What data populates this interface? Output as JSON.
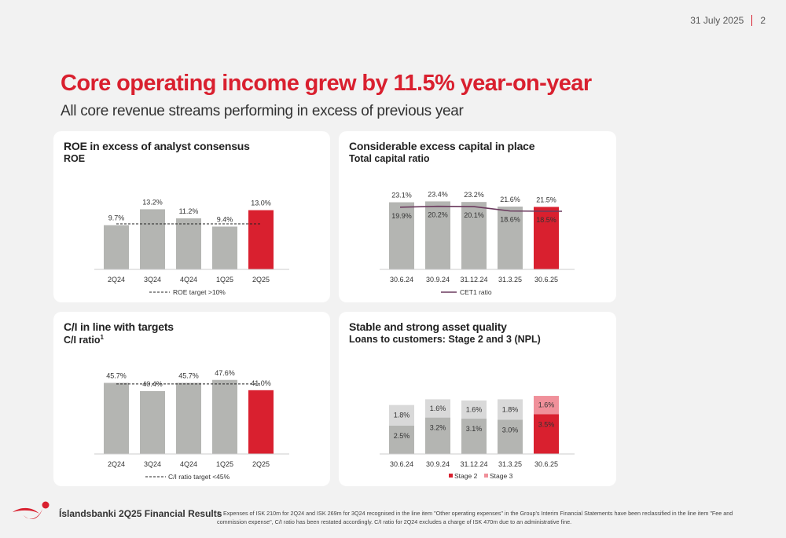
{
  "header": {
    "date": "31 July 2025",
    "page_number": "2",
    "title": "Core operating income grew by 11.5% year-on-year",
    "subtitle": "All core revenue streams performing in excess of previous year"
  },
  "colors": {
    "bar_gray": "#b4b5b2",
    "highlight_red": "#d9202f",
    "stage3_pink": "#f0909a",
    "stage3_light": "#d9d9d9",
    "cet1_line": "#6b3a5e",
    "dash": "#222222"
  },
  "panels": {
    "roe": {
      "title": "ROE in excess of analyst consensus",
      "subtitle": "ROE",
      "legend": "ROE target >10%"
    },
    "capital": {
      "title": "Considerable excess capital in place",
      "subtitle": "Total capital ratio",
      "legend": "CET1 ratio"
    },
    "ci": {
      "title": "C/I in line with targets",
      "subtitle": "C/I ratio",
      "footnote_mark": "1",
      "legend": "C/I ratio target <45%"
    },
    "npl": {
      "title": "Stable and strong asset quality",
      "subtitle": "Loans to customers: Stage 2 and 3 (NPL)",
      "legend": [
        "Stage 2",
        "Stage 3"
      ]
    }
  },
  "chart_data": [
    {
      "type": "bar",
      "categories": [
        "2Q24",
        "3Q24",
        "4Q24",
        "1Q25",
        "2Q25"
      ],
      "values": [
        9.7,
        13.2,
        11.2,
        9.4,
        13.0
      ],
      "labels": [
        "9.7%",
        "13.2%",
        "11.2%",
        "9.4%",
        "13.0%"
      ],
      "target_line": 10,
      "title": "ROE in excess of analyst consensus"
    },
    {
      "type": "bar",
      "categories": [
        "30.6.24",
        "30.9.24",
        "31.12.24",
        "31.3.25",
        "30.6.25"
      ],
      "series": [
        {
          "name": "Total capital ratio",
          "values": [
            23.1,
            23.4,
            23.2,
            21.6,
            21.5
          ],
          "labels": [
            "23.1%",
            "23.4%",
            "23.2%",
            "21.6%",
            "21.5%"
          ]
        },
        {
          "name": "CET1 ratio",
          "values": [
            19.9,
            20.2,
            20.1,
            18.6,
            18.5
          ],
          "labels": [
            "19.9%",
            "20.2%",
            "20.1%",
            "18.6%",
            "18.5%"
          ]
        }
      ],
      "title": "Considerable excess capital in place"
    },
    {
      "type": "bar",
      "categories": [
        "2Q24",
        "3Q24",
        "4Q24",
        "1Q25",
        "2Q25"
      ],
      "values": [
        45.7,
        40.4,
        45.7,
        47.6,
        41.0
      ],
      "labels": [
        "45.7%",
        "40.4%",
        "45.7%",
        "47.6%",
        "41.0%"
      ],
      "target_line": 45,
      "title": "C/I in line with targets"
    },
    {
      "type": "bar",
      "stacked": true,
      "categories": [
        "30.6.24",
        "30.9.24",
        "31.12.24",
        "31.3.25",
        "30.6.25"
      ],
      "series": [
        {
          "name": "Stage 2",
          "values": [
            2.5,
            3.2,
            3.1,
            3.0,
            3.5
          ],
          "labels": [
            "2.5%",
            "3.2%",
            "3.1%",
            "3.0%",
            "3.5%"
          ]
        },
        {
          "name": "Stage 3",
          "values": [
            1.8,
            1.6,
            1.6,
            1.8,
            1.6
          ],
          "labels": [
            "1.8%",
            "1.6%",
            "1.6%",
            "1.8%",
            "1.6%"
          ]
        }
      ],
      "title": "Stable and strong asset quality"
    }
  ],
  "footer": {
    "brand": "Íslandsbanki 2Q25 Financial Results",
    "footnote": "1. Expenses of ISK 210m for 2Q24 and ISK 269m for 3Q24 recognised in the line item \"Other operating expenses\" in the Group's Interim Financial Statements have been reclassified in the line item \"Fee and commission expense\", C/I ratio has been restated accordingly. C/I ratio for 2Q24 excludes a charge of ISK 470m due to an administrative fine."
  }
}
